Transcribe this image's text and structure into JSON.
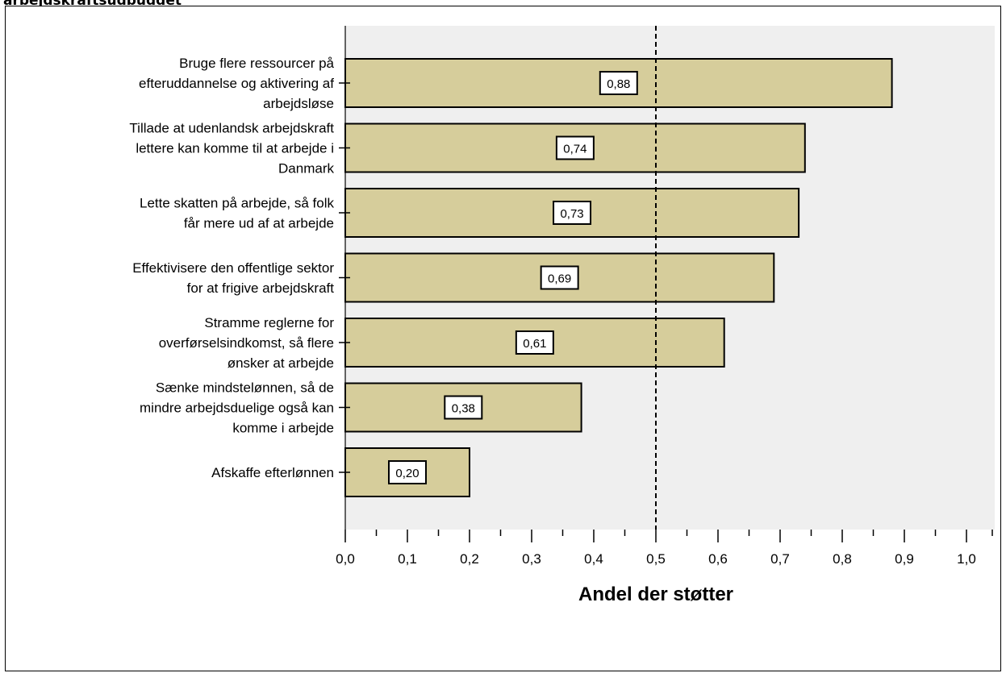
{
  "page": {
    "title": "arbejdskraftsudbuddet"
  },
  "chart_data": {
    "type": "bar",
    "orientation": "horizontal",
    "categories": [
      "Bruge flere ressourcer på efteruddannelse og aktivering af arbejdsløse",
      "Tillade at udenlandsk arbejdskraft lettere kan komme til at arbejde i Danmark",
      "Lette skatten på arbejde, så folk får mere ud af at arbejde",
      "Effektivisere den offentlige sektor for at frigive arbejdskraft",
      "Stramme reglerne for overførselsindkomst, så flere ønsker at arbejde",
      "Sænke mindstelønnen, så de mindre arbejdsduelige også kan komme i arbejde",
      "Afskaffe efterlønnen"
    ],
    "category_lines": [
      [
        "Bruge flere ressourcer på",
        "efteruddannelse og aktivering af",
        "arbejdsløse"
      ],
      [
        "Tillade at udenlandsk arbejdskraft",
        "lettere kan komme til at arbejde i",
        "Danmark"
      ],
      [
        "Lette skatten på arbejde, så folk",
        "får mere ud af at arbejde"
      ],
      [
        "Effektivisere den offentlige sektor",
        "for at frigive arbejdskraft"
      ],
      [
        "Stramme reglerne for",
        "overførselsindkomst, så flere",
        "ønsker at arbejde"
      ],
      [
        "Sænke mindstelønnen, så de",
        "mindre arbejdsduelige også kan",
        "komme i arbejde"
      ],
      [
        "Afskaffe efterlønnen"
      ]
    ],
    "values": [
      0.88,
      0.74,
      0.73,
      0.69,
      0.61,
      0.38,
      0.2
    ],
    "value_labels": [
      "0,88",
      "0,74",
      "0,73",
      "0,69",
      "0,61",
      "0,38",
      "0,20"
    ],
    "xlabel": "Andel der støtter",
    "xlim": [
      0.0,
      1.0
    ],
    "xticks": [
      0.0,
      0.1,
      0.2,
      0.3,
      0.4,
      0.5,
      0.6,
      0.7,
      0.8,
      0.9,
      1.0
    ],
    "xtick_labels": [
      "0,0",
      "0,1",
      "0,2",
      "0,3",
      "0,4",
      "0,5",
      "0,6",
      "0,7",
      "0,8",
      "0,9",
      "1,0"
    ],
    "reference_line": 0.5,
    "grid": false,
    "legend": "none",
    "colors": {
      "bar_fill": "#d6cd9b",
      "plot_background": "#efefef",
      "label_box": "#ffffff",
      "axis": "#000000"
    }
  }
}
